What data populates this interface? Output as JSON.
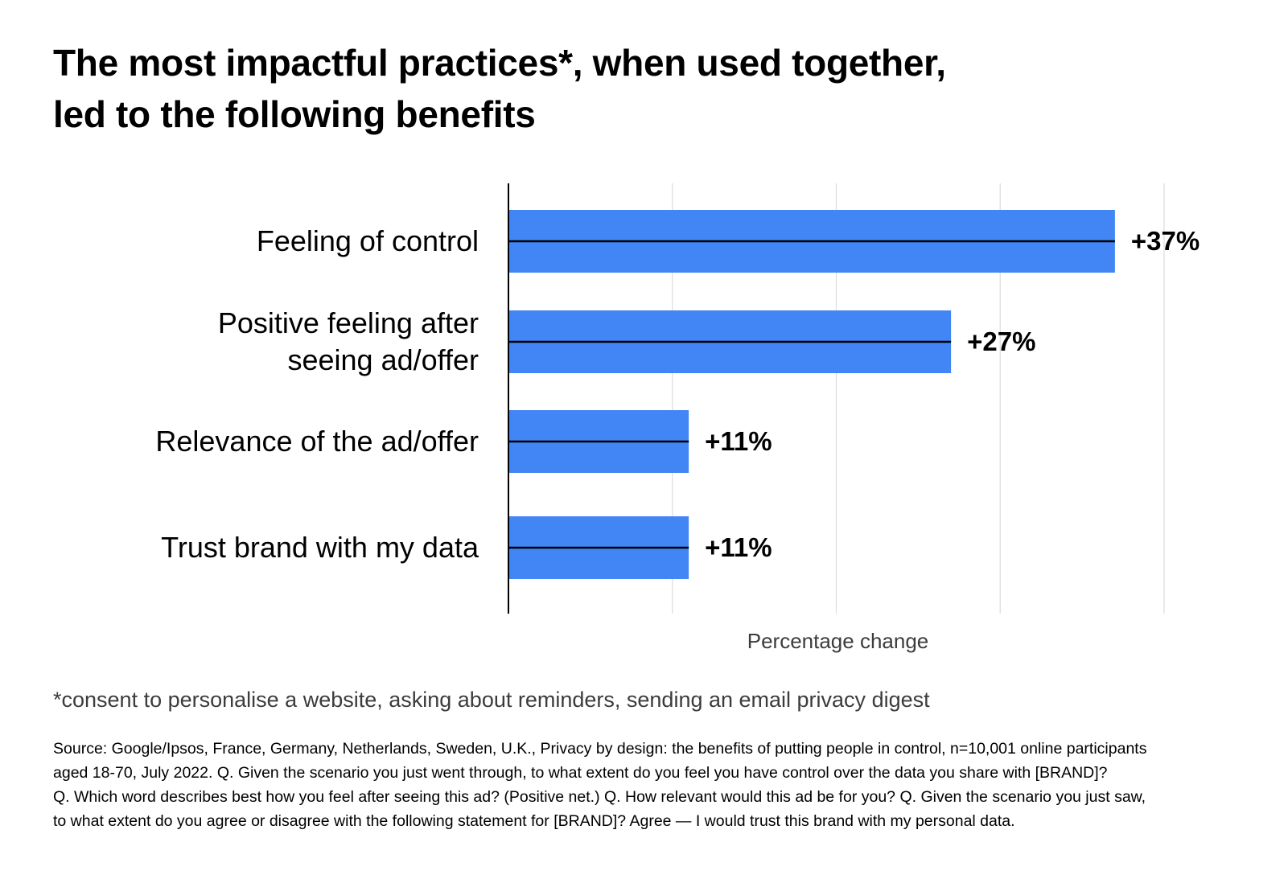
{
  "title_lines": [
    "The most impactful practices*, when used together,",
    "led to the following benefits"
  ],
  "chart_data": {
    "type": "bar",
    "orientation": "horizontal",
    "categories": [
      [
        "Feeling of control"
      ],
      [
        "Positive feeling after",
        "seeing ad/offer"
      ],
      [
        "Relevance of the ad/offer"
      ],
      [
        "Trust brand with my data"
      ]
    ],
    "values": [
      37,
      27,
      11,
      11
    ],
    "value_labels": [
      "+37%",
      "+27%",
      "+11%",
      "+11%"
    ],
    "xlabel": "Percentage change",
    "xlim": [
      0,
      40
    ],
    "x_gridlines": [
      10,
      20,
      30,
      40
    ],
    "x_tick_labels_shown": false,
    "grid": true,
    "bar_color": "#4285f4",
    "bar_center_line_color": "#000000",
    "legend": "none"
  },
  "footnote": "*consent to personalise a website, asking about reminders, sending an email privacy digest",
  "source_lines": [
    "Source: Google/Ipsos, France, Germany, Netherlands, Sweden, U.K., Privacy by design: the benefits of putting people in control, n=10,001 online participants",
    "aged 18-70, July 2022. Q. Given the scenario you just went through, to what extent do you feel you have control over the data you share with [BRAND]?",
    "Q. Which word describes best how you feel after seeing this ad? (Positive net.) Q. How relevant would this ad be for you? Q. Given the scenario you just saw,",
    "to what extent do you agree or disagree with the following statement for [BRAND]? Agree — I would trust this brand with my personal data."
  ]
}
